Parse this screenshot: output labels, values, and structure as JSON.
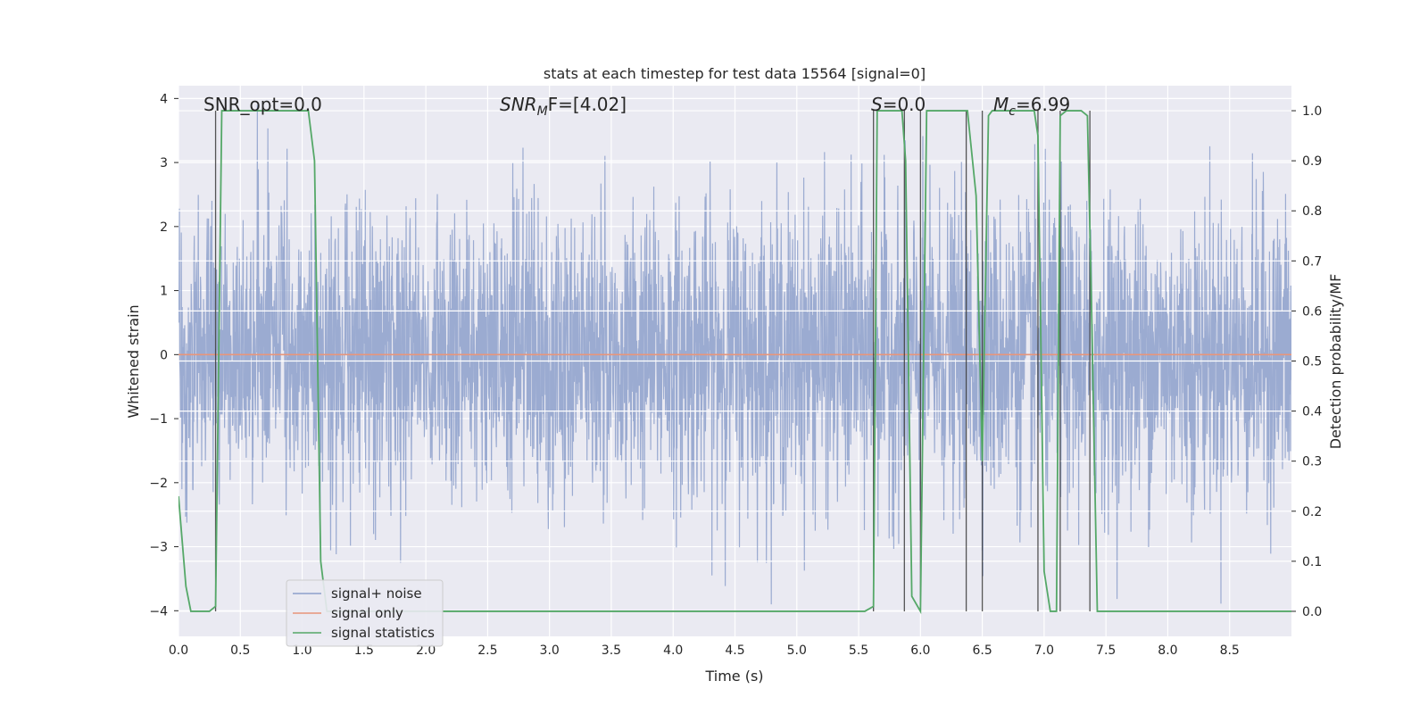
{
  "chart_data": {
    "type": "line",
    "title": "stats at each timestep for test data 15564 [signal=0]",
    "xlabel": "Time (s)",
    "ylabel": "Whitened strain",
    "y2label": "Detection probability/MF",
    "xlim": [
      0.0,
      9.0
    ],
    "ylim": [
      -4.4,
      4.2
    ],
    "y2lim": [
      -0.05,
      1.05
    ],
    "xticks": [
      "0.0",
      "0.5",
      "1.0",
      "1.5",
      "2.0",
      "2.5",
      "3.0",
      "3.5",
      "4.0",
      "4.5",
      "5.0",
      "5.5",
      "6.0",
      "6.5",
      "7.0",
      "7.5",
      "8.0",
      "8.5"
    ],
    "yticks": [
      "4",
      "3",
      "2",
      "1",
      "0",
      "−1",
      "−2",
      "−3",
      "−4"
    ],
    "y2ticks": [
      "1.0",
      "0.9",
      "0.8",
      "0.7",
      "0.6",
      "0.5",
      "0.4",
      "0.3",
      "0.2",
      "0.1",
      "0.0"
    ],
    "grid": true,
    "legend_position": "lower-left",
    "annotations": {
      "snr_opt": "SNR_opt=0.0",
      "snr_mf_base": "SNR",
      "snr_mf_sub": "M",
      "snr_mf_rest": "F=[4.02]",
      "s_italic": "S",
      "s_rest": "=0.0",
      "mc_base": "M",
      "mc_sub": "c",
      "mc_rest": "=6.99"
    },
    "series": [
      {
        "name": "signal+ noise",
        "color": "#8da0cb",
        "axis": "left",
        "description": "whitened noisy strain, approx gaussian noise, samples between -3.9 and 3.9",
        "noise_std": 1.0,
        "range": [
          -3.9,
          3.9
        ]
      },
      {
        "name": "signal only",
        "color": "#e8957a",
        "axis": "left",
        "x": [
          0.0,
          9.0
        ],
        "y": [
          0.0,
          0.0
        ]
      },
      {
        "name": "signal statistics",
        "color": "#55a868",
        "axis": "right",
        "x": [
          0.0,
          0.06,
          0.1,
          0.25,
          0.3,
          0.35,
          0.38,
          1.02,
          1.05,
          1.1,
          1.15,
          1.2,
          5.55,
          5.62,
          5.65,
          5.7,
          5.85,
          5.88,
          5.93,
          6.0,
          6.05,
          6.08,
          6.35,
          6.38,
          6.45,
          6.5,
          6.55,
          6.58,
          6.62,
          6.68,
          6.92,
          6.95,
          7.0,
          7.05,
          7.1,
          7.13,
          7.18,
          7.3,
          7.35,
          7.38,
          7.43,
          9.0
        ],
        "y": [
          0.23,
          0.05,
          0.0,
          0.0,
          0.01,
          1.0,
          1.0,
          1.0,
          1.0,
          0.9,
          0.1,
          0.0,
          0.0,
          0.01,
          1.0,
          1.0,
          1.0,
          0.9,
          0.03,
          0.0,
          1.0,
          1.0,
          1.0,
          1.0,
          0.83,
          0.3,
          0.99,
          1.0,
          1.0,
          1.0,
          1.0,
          0.95,
          0.08,
          0.0,
          0.0,
          0.99,
          1.0,
          1.0,
          0.99,
          0.65,
          0.0,
          0.0
        ]
      }
    ],
    "vertical_lines": [
      0.3,
      5.62,
      5.87,
      6.0,
      6.37,
      6.5,
      6.95,
      7.13,
      7.37
    ]
  },
  "legend": {
    "items": [
      "signal+ noise",
      "signal only",
      "signal statistics"
    ]
  }
}
